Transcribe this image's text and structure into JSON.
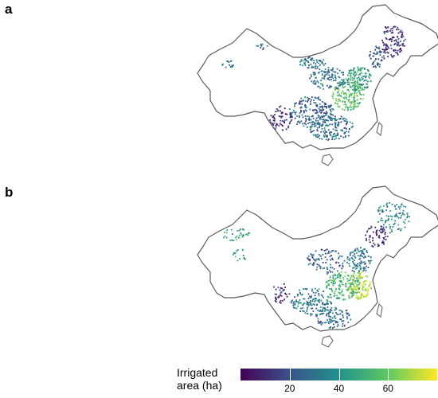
{
  "panels": [
    {
      "label": "a",
      "seed": 11,
      "density": 1.0,
      "scenario": "a"
    },
    {
      "label": "b",
      "seed": 29,
      "density": 0.85,
      "scenario": "b"
    }
  ],
  "legend": {
    "title_line1": "Irrigated",
    "title_line2": "area (ha)",
    "ticks": [
      {
        "value": 20,
        "label": "20"
      },
      {
        "value": 40,
        "label": "40"
      },
      {
        "value": 60,
        "label": "60"
      }
    ],
    "min": 0,
    "max": 80,
    "colormap": [
      "#440154",
      "#3b528b",
      "#21918c",
      "#5ec962",
      "#fde725"
    ]
  }
}
